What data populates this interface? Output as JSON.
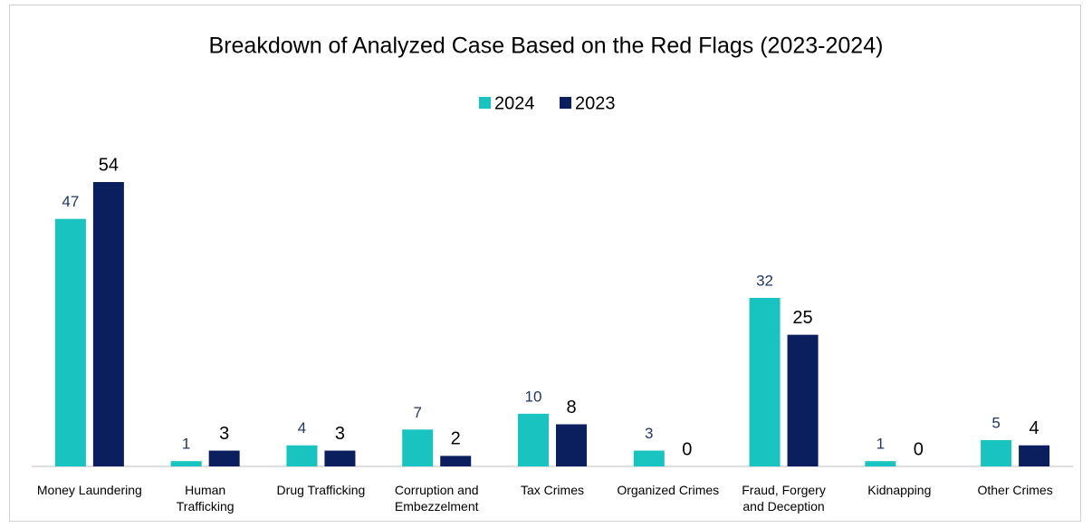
{
  "chart_data": {
    "type": "bar",
    "title": "Breakdown of Analyzed Case Based on the Red Flags (2023-2024)",
    "categories": [
      "Money Laundering",
      "Human Trafficking",
      "Drug Trafficking",
      "Corruption and Embezzelment",
      "Tax Crimes",
      "Organized Crimes",
      "Fraud, Forgery and Deception",
      "Kidnapping",
      "Other Crimes"
    ],
    "series": [
      {
        "name": "2024",
        "color": "#19c3c0",
        "label_color": "#1f3864",
        "values": [
          47,
          1,
          4,
          7,
          10,
          3,
          32,
          1,
          5
        ]
      },
      {
        "name": "2023",
        "color": "#0b1f5e",
        "label_color": "#000000",
        "values": [
          54,
          3,
          3,
          2,
          8,
          0,
          25,
          0,
          4
        ]
      }
    ],
    "legend": "top"
  }
}
